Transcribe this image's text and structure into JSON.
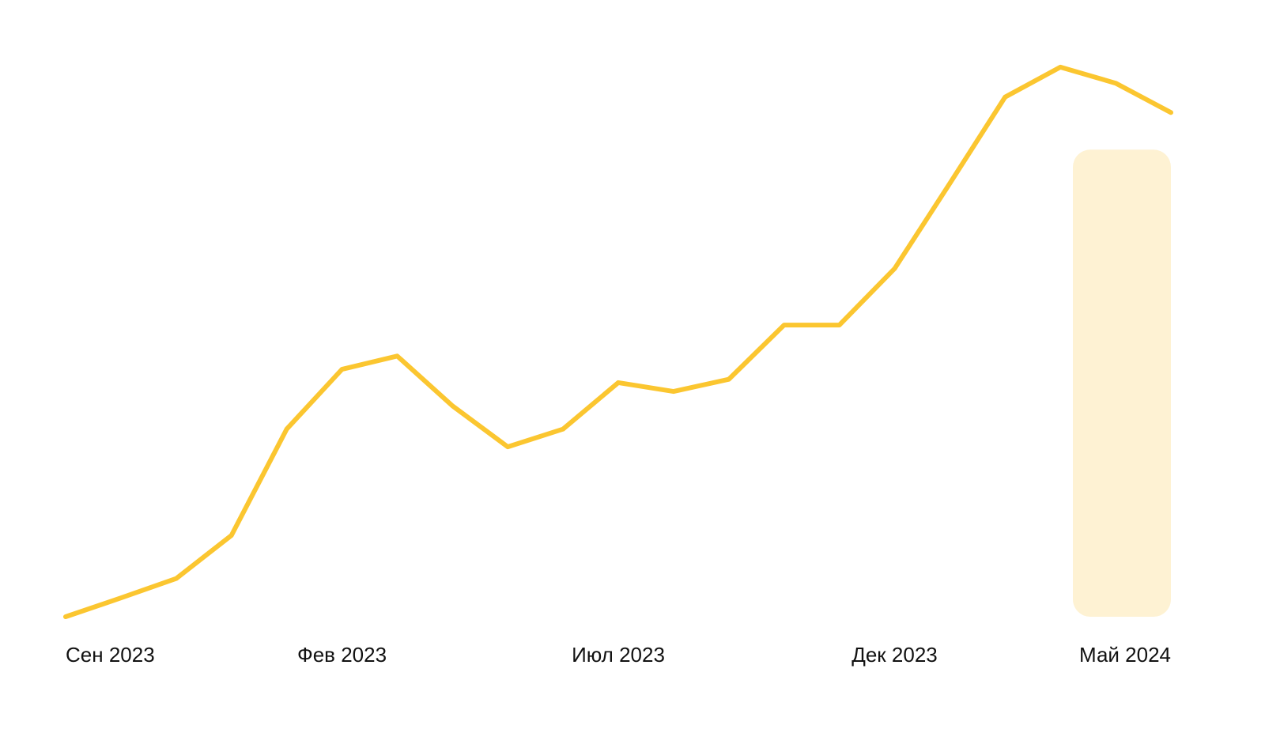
{
  "chart_data": {
    "type": "line",
    "categories": [
      "Сен 2023",
      null,
      null,
      null,
      null,
      "Фев 2023",
      null,
      null,
      null,
      null,
      "Июл 2023",
      null,
      null,
      null,
      null,
      "Дек 2023",
      null,
      null,
      null,
      null,
      "Май 2024"
    ],
    "values": [
      0,
      3.4,
      6.9,
      14.7,
      33.9,
      44.7,
      47.1,
      38.1,
      30.7,
      33.9,
      42.3,
      40.7,
      42.9,
      52.7,
      52.7,
      62.9,
      78.3,
      93.9,
      99.3,
      96.4,
      91.1
    ],
    "color": "#fbc630",
    "highlight_color": "#fef2d3",
    "ylim": [
      0,
      100
    ]
  }
}
